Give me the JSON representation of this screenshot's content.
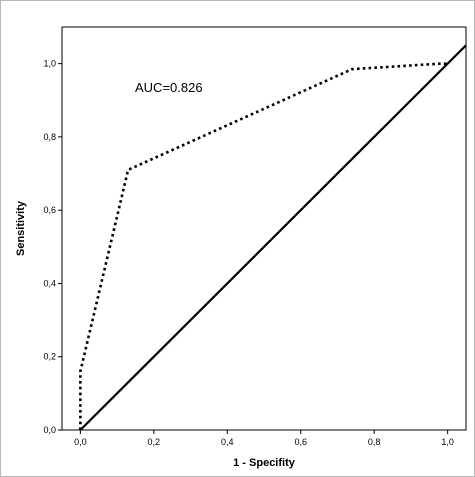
{
  "chart_data": {
    "type": "line",
    "xlabel": "1 - Specifity",
    "ylabel": "Sensitivity",
    "xlim": [
      -0.05,
      1.05
    ],
    "ylim": [
      0.0,
      1.1
    ],
    "x_ticks": [
      "0,0",
      "0,2",
      "0,4",
      "0,6",
      "0,8",
      "1,0"
    ],
    "y_ticks": [
      "0,0",
      "0,2",
      "0,4",
      "0,6",
      "0,8",
      "1,0"
    ],
    "annotation": "AUC=0.826",
    "grid": false,
    "series": [
      {
        "style": "dotted",
        "color": "#000000",
        "points": [
          [
            0.0,
            0.0
          ],
          [
            0.0,
            0.16
          ],
          [
            0.13,
            0.71
          ],
          [
            0.74,
            0.985
          ],
          [
            0.98,
            1.0
          ],
          [
            1.0,
            1.0
          ]
        ]
      },
      {
        "style": "solid",
        "color": "#000000",
        "points": [
          [
            0.0,
            0.0
          ],
          [
            1.05,
            1.05
          ]
        ]
      }
    ]
  }
}
